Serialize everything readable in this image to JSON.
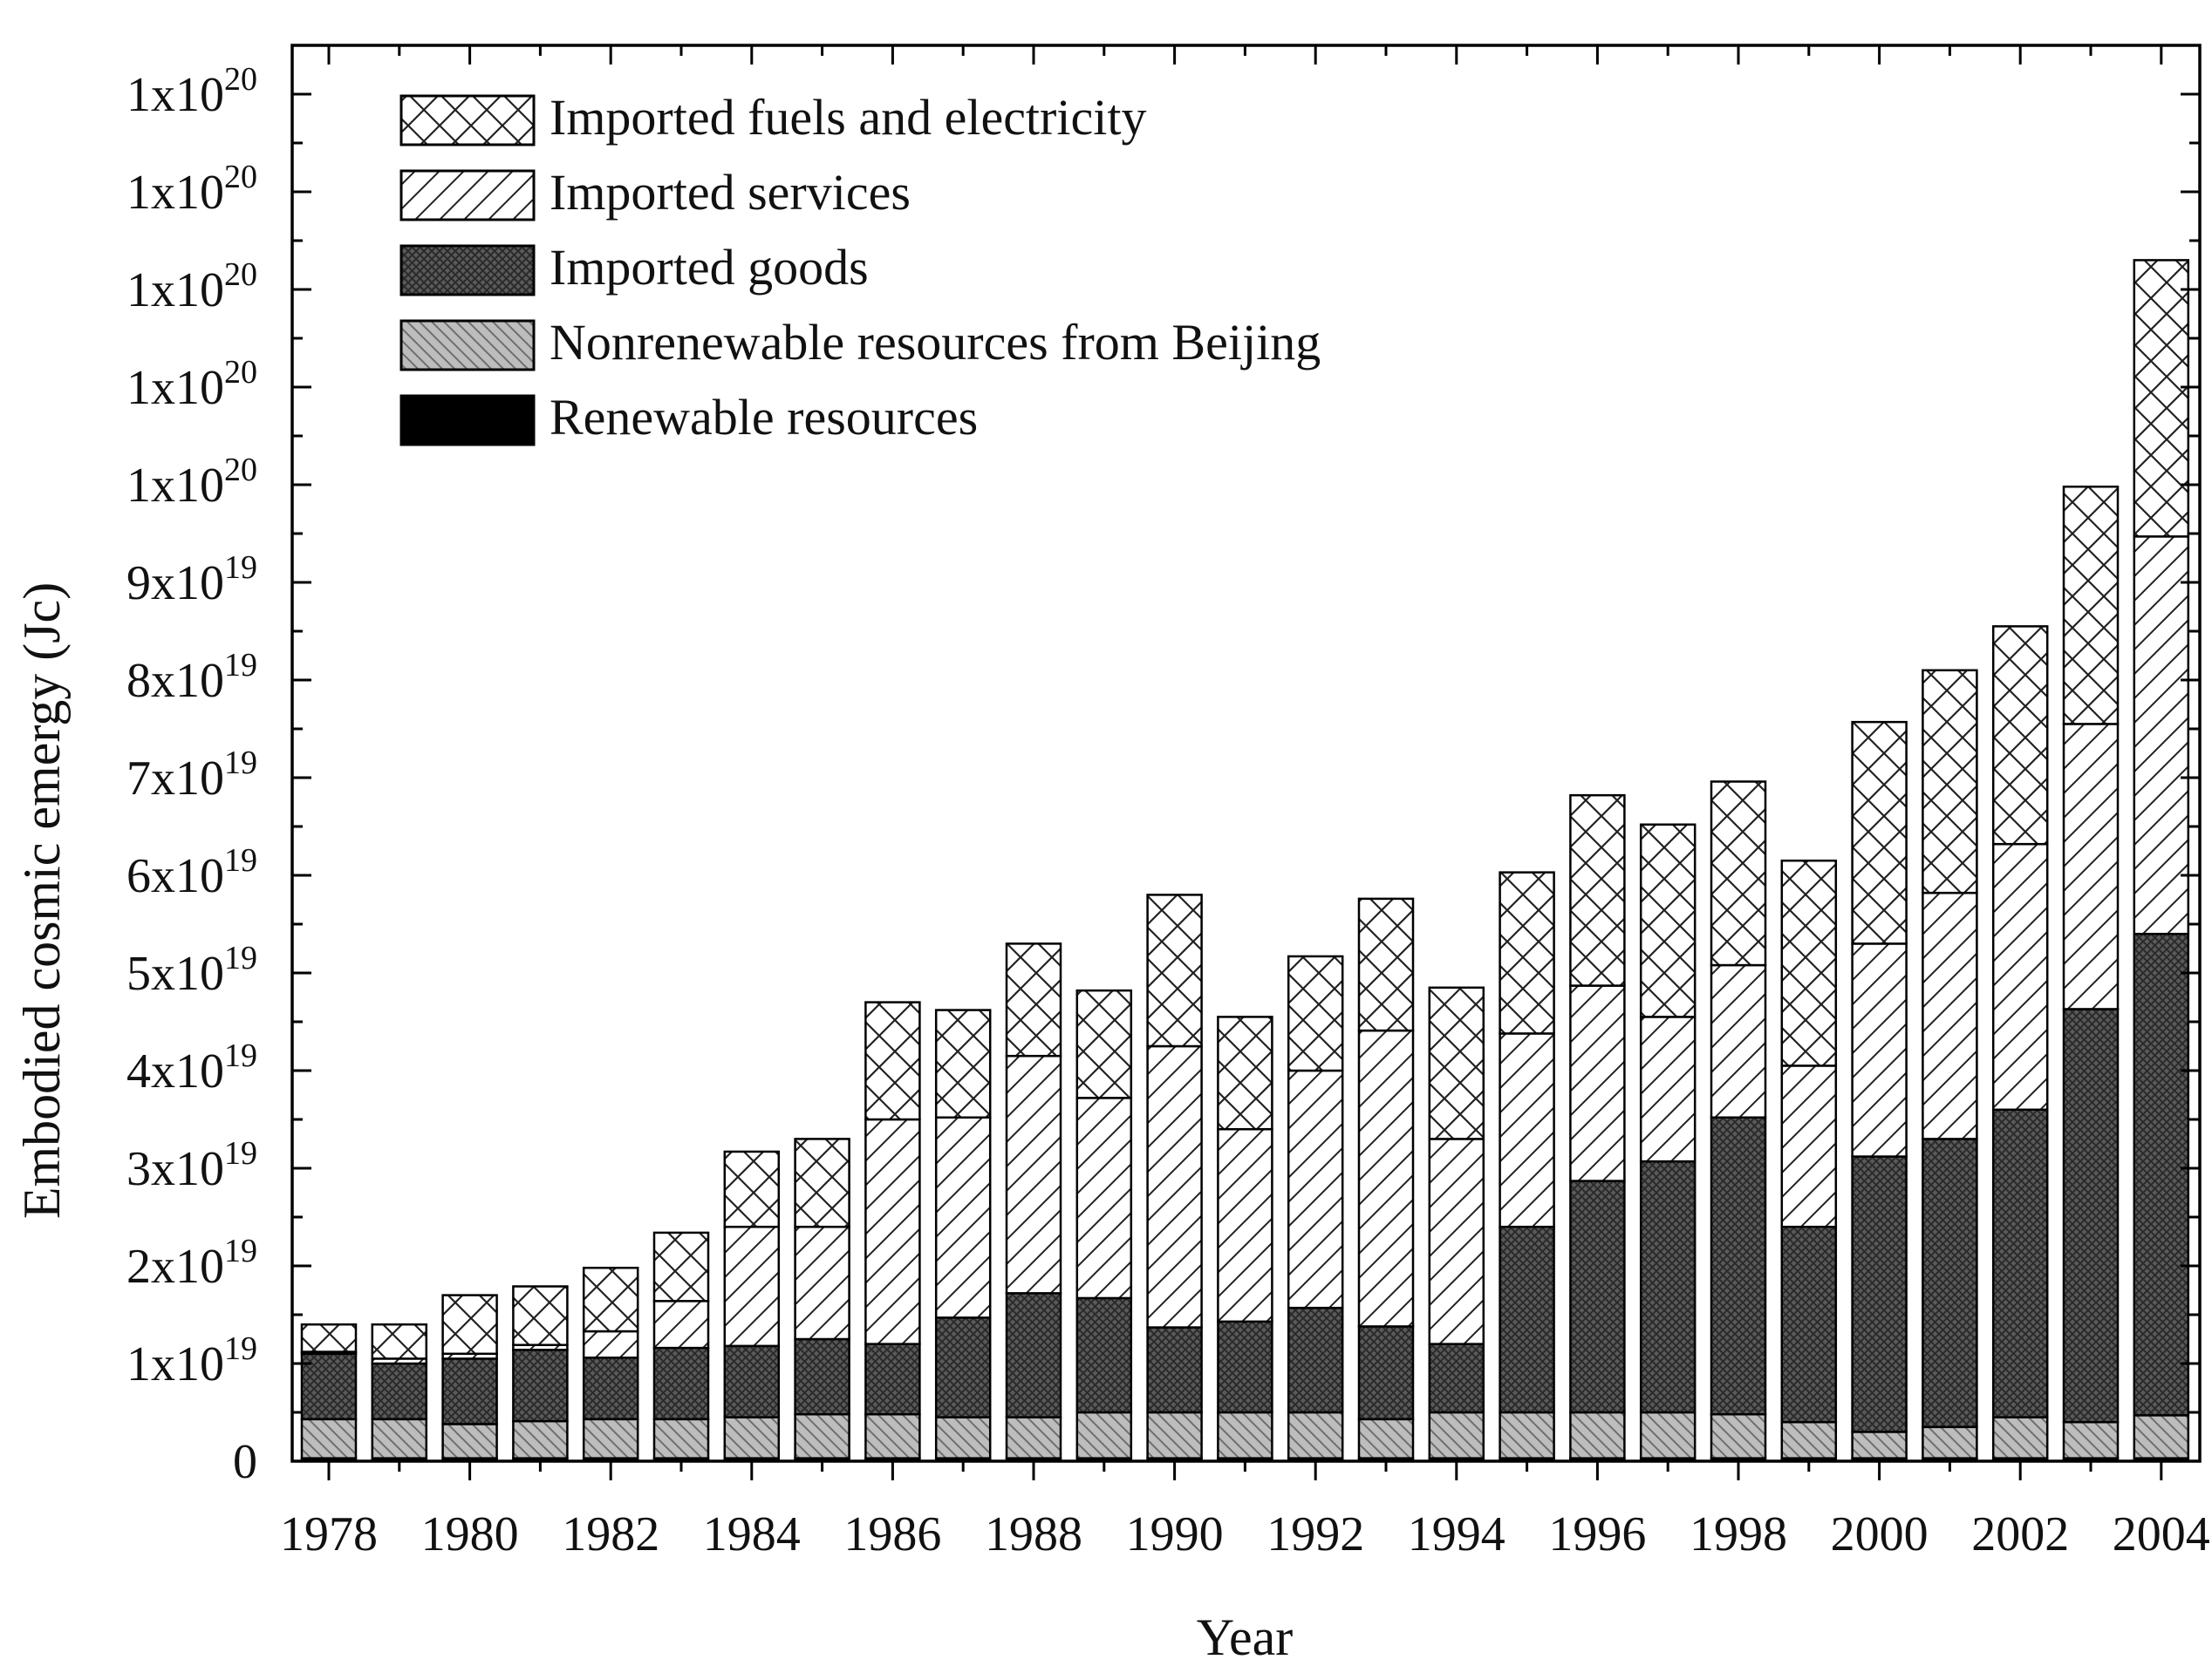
{
  "chart_data": {
    "type": "bar",
    "stacked": true,
    "title": "",
    "xlabel": "Year",
    "ylabel": "Embodied cosmic emergy (Jc)",
    "ylim": [
      0,
      145000000000000000000
    ],
    "categories": [
      "1978",
      "1979",
      "1980",
      "1981",
      "1982",
      "1983",
      "1984",
      "1985",
      "1986",
      "1987",
      "1988",
      "1989",
      "1990",
      "1991",
      "1992",
      "1993",
      "1994",
      "1995",
      "1996",
      "1997",
      "1998",
      "1999",
      "2000",
      "2001",
      "2002",
      "2003",
      "2004"
    ],
    "x_tick_labels": [
      "1978",
      "1980",
      "1982",
      "1984",
      "1986",
      "1988",
      "1990",
      "1992",
      "1994",
      "1996",
      "1998",
      "2000",
      "2002",
      "2004"
    ],
    "y_ticks": [
      {
        "value": 0,
        "mantissa": "0",
        "exp": ""
      },
      {
        "value": 10000000000000000000,
        "mantissa": "1x10",
        "exp": "19"
      },
      {
        "value": 20000000000000000000,
        "mantissa": "2x10",
        "exp": "19"
      },
      {
        "value": 30000000000000000000,
        "mantissa": "3x10",
        "exp": "19"
      },
      {
        "value": 40000000000000000000,
        "mantissa": "4x10",
        "exp": "19"
      },
      {
        "value": 50000000000000000000,
        "mantissa": "5x10",
        "exp": "19"
      },
      {
        "value": 60000000000000000000,
        "mantissa": "6x10",
        "exp": "19"
      },
      {
        "value": 70000000000000000000,
        "mantissa": "7x10",
        "exp": "19"
      },
      {
        "value": 80000000000000000000,
        "mantissa": "8x10",
        "exp": "19"
      },
      {
        "value": 90000000000000000000,
        "mantissa": "9x10",
        "exp": "19"
      },
      {
        "value": 100000000000000000000,
        "mantissa": "1x10",
        "exp": "20"
      },
      {
        "value": 110000000000000000000,
        "mantissa": "1x10",
        "exp": "20"
      },
      {
        "value": 120000000000000000000,
        "mantissa": "1x10",
        "exp": "20"
      },
      {
        "value": 130000000000000000000,
        "mantissa": "1x10",
        "exp": "20"
      },
      {
        "value": 140000000000000000000,
        "mantissa": "1x10",
        "exp": "20"
      }
    ],
    "legend_position": "top-left",
    "unit_scale": 1e+19,
    "series_units": "values in units of 1e19 Jc",
    "series": [
      {
        "name": "Renewable resources",
        "pattern": "solid-black",
        "values": [
          0.03,
          0.03,
          0.03,
          0.03,
          0.03,
          0.03,
          0.03,
          0.03,
          0.03,
          0.03,
          0.03,
          0.03,
          0.03,
          0.03,
          0.03,
          0.03,
          0.03,
          0.03,
          0.03,
          0.03,
          0.03,
          0.03,
          0.03,
          0.03,
          0.03,
          0.03,
          0.03
        ]
      },
      {
        "name": "Nonrenewable resources from Beijing",
        "pattern": "grey-hatch",
        "values": [
          0.4,
          0.4,
          0.35,
          0.38,
          0.4,
          0.4,
          0.42,
          0.45,
          0.45,
          0.42,
          0.42,
          0.47,
          0.47,
          0.47,
          0.47,
          0.4,
          0.47,
          0.47,
          0.47,
          0.47,
          0.45,
          0.37,
          0.27,
          0.32,
          0.42,
          0.37,
          0.44
        ]
      },
      {
        "name": "Imported goods",
        "pattern": "dark-crosshatch",
        "values": [
          0.67,
          0.57,
          0.67,
          0.73,
          0.63,
          0.73,
          0.73,
          0.77,
          0.72,
          1.02,
          1.27,
          1.17,
          0.87,
          0.93,
          1.07,
          0.95,
          0.7,
          1.9,
          2.37,
          2.57,
          3.04,
          2.0,
          2.82,
          2.95,
          3.15,
          4.23,
          4.93
        ]
      },
      {
        "name": "Imported services",
        "pattern": "diagonal",
        "values": [
          0.02,
          0.05,
          0.05,
          0.05,
          0.27,
          0.48,
          1.22,
          1.15,
          2.3,
          2.05,
          2.43,
          2.05,
          2.88,
          1.97,
          2.43,
          3.03,
          2.1,
          1.98,
          2.0,
          1.48,
          1.56,
          1.65,
          2.18,
          2.52,
          2.72,
          2.92,
          4.07
        ]
      },
      {
        "name": "Imported fuels and electricity",
        "pattern": "cross",
        "values": [
          0.28,
          0.35,
          0.6,
          0.6,
          0.65,
          0.7,
          0.77,
          0.9,
          1.2,
          1.1,
          1.15,
          1.1,
          1.55,
          1.15,
          1.17,
          1.35,
          1.55,
          1.65,
          1.95,
          1.97,
          1.88,
          2.1,
          2.27,
          2.28,
          2.23,
          2.43,
          2.83
        ]
      }
    ],
    "legend_order": [
      "Imported fuels and electricity",
      "Imported services",
      "Imported goods",
      "Nonrenewable resources from Beijing",
      "Renewable resources"
    ]
  }
}
